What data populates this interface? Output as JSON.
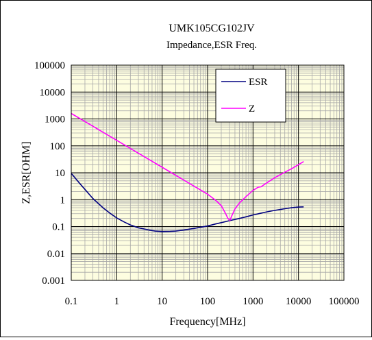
{
  "chart_data": {
    "type": "line",
    "title": "UMK105CG102JV",
    "subtitle": "Impedance,ESR Freq.",
    "xlabel": "Frequency[MHz]",
    "ylabel": "Z,ESR[OHM]",
    "x_scale": "log",
    "y_scale": "log",
    "xlim": [
      0.1,
      100000
    ],
    "ylim": [
      0.001,
      100000
    ],
    "x_ticks": [
      "0.1",
      "1",
      "10",
      "100",
      "1000",
      "10000",
      "100000"
    ],
    "y_ticks": [
      "0.001",
      "0.01",
      "0.1",
      "1",
      "10",
      "100",
      "1000",
      "10000",
      "100000"
    ],
    "grid": true,
    "legend_position": "top-right",
    "colors": {
      "plot_background": "#fdfde0",
      "minor_grid": "#a8a8a8",
      "major_grid": "#000000",
      "ESR": "#000080",
      "Z": "#ff00ff"
    },
    "series": [
      {
        "name": "ESR",
        "color": "#000080",
        "x": [
          0.1,
          0.15,
          0.2,
          0.3,
          0.5,
          0.7,
          1,
          1.5,
          2,
          3,
          5,
          7,
          10,
          15,
          20,
          30,
          50,
          70,
          100,
          150,
          200,
          300,
          500,
          700,
          1000,
          2000,
          3000,
          5000,
          7000,
          10000,
          13000
        ],
        "y": [
          9.5,
          4.2,
          2.4,
          1.1,
          0.5,
          0.32,
          0.21,
          0.145,
          0.115,
          0.09,
          0.075,
          0.068,
          0.065,
          0.066,
          0.068,
          0.074,
          0.085,
          0.095,
          0.105,
          0.125,
          0.14,
          0.165,
          0.2,
          0.23,
          0.27,
          0.35,
          0.4,
          0.46,
          0.5,
          0.53,
          0.54
        ]
      },
      {
        "name": "Z",
        "color": "#ff00ff",
        "x": [
          0.1,
          0.2,
          0.5,
          1,
          2,
          5,
          10,
          20,
          50,
          100,
          150,
          200,
          250,
          280,
          310,
          340,
          400,
          500,
          700,
          1000,
          1300,
          1500,
          2000,
          3000,
          5000,
          7000,
          10000,
          13000
        ],
        "y": [
          1600,
          800,
          320,
          160,
          80,
          32,
          16,
          8,
          3.2,
          1.6,
          0.95,
          0.6,
          0.3,
          0.2,
          0.17,
          0.25,
          0.45,
          0.75,
          1.3,
          2.2,
          2.9,
          3.0,
          4.2,
          6.5,
          10.5,
          14,
          20,
          26
        ]
      }
    ]
  }
}
